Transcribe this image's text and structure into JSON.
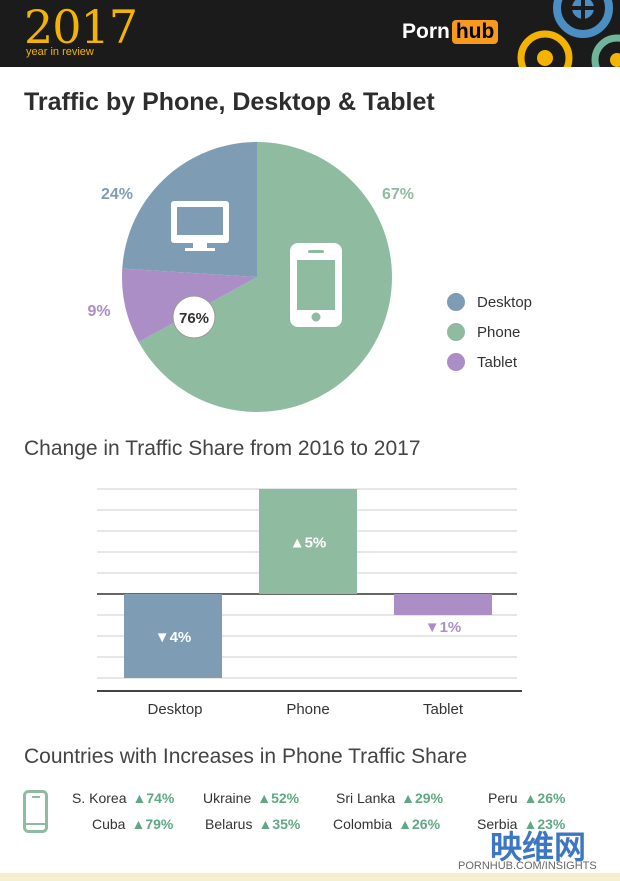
{
  "header": {
    "year": "2017",
    "year_sub": "year in review",
    "brand_left": "Porn",
    "brand_right": "hub",
    "accent": "#f3b300",
    "brand_accent": "#f7991c"
  },
  "pie": {
    "title": "Traffic by Phone, Desktop & Tablet",
    "center_label": "76%",
    "slice_labels": {
      "desktop": "24%",
      "phone": "67%",
      "tablet": "9%"
    },
    "legend": [
      {
        "label": "Desktop",
        "color": "#7e9db4"
      },
      {
        "label": "Phone",
        "color": "#8fbca0"
      },
      {
        "label": "Tablet",
        "color": "#ab8ec6"
      }
    ]
  },
  "bars": {
    "title": "Change in Traffic Share from 2016 to 2017",
    "labels": [
      "▼4%",
      "▲5%",
      "▼1%"
    ]
  },
  "countries": {
    "title": "Countries with Increases in Phone Traffic Share",
    "rows": [
      [
        {
          "name": "S. Korea",
          "value": "▲74%"
        },
        {
          "name": "Ukraine",
          "value": "▲52%"
        },
        {
          "name": "Sri Lanka",
          "value": "▲29%"
        },
        {
          "name": "Peru",
          "value": "▲26%"
        }
      ],
      [
        {
          "name": "Cuba",
          "value": "▲79%"
        },
        {
          "name": "Belarus",
          "value": "▲35%"
        },
        {
          "name": "Colombia",
          "value": "▲26%"
        },
        {
          "name": "Serbia",
          "value": "▲23%"
        }
      ]
    ],
    "icon": "phone-icon"
  },
  "footer": {
    "url": "PORNHUB.COM/INSIGHTS",
    "watermark": "映维网"
  },
  "chart_data": [
    {
      "type": "pie",
      "title": "Traffic by Phone, Desktop & Tablet",
      "categories": [
        "Desktop",
        "Phone",
        "Tablet"
      ],
      "values": [
        24,
        67,
        9
      ],
      "colors": [
        "#7e9db4",
        "#8fbca0",
        "#ab8ec6"
      ],
      "annotation": "76%",
      "legend_position": "right"
    },
    {
      "type": "bar",
      "title": "Change in Traffic Share from 2016 to 2017",
      "categories": [
        "Desktop",
        "Phone",
        "Tablet"
      ],
      "values": [
        -4,
        5,
        -1
      ],
      "ylim": [
        -4,
        5
      ],
      "grid": true,
      "colors": [
        "#7e9db4",
        "#8fbca0",
        "#ab8ec6"
      ]
    }
  ]
}
